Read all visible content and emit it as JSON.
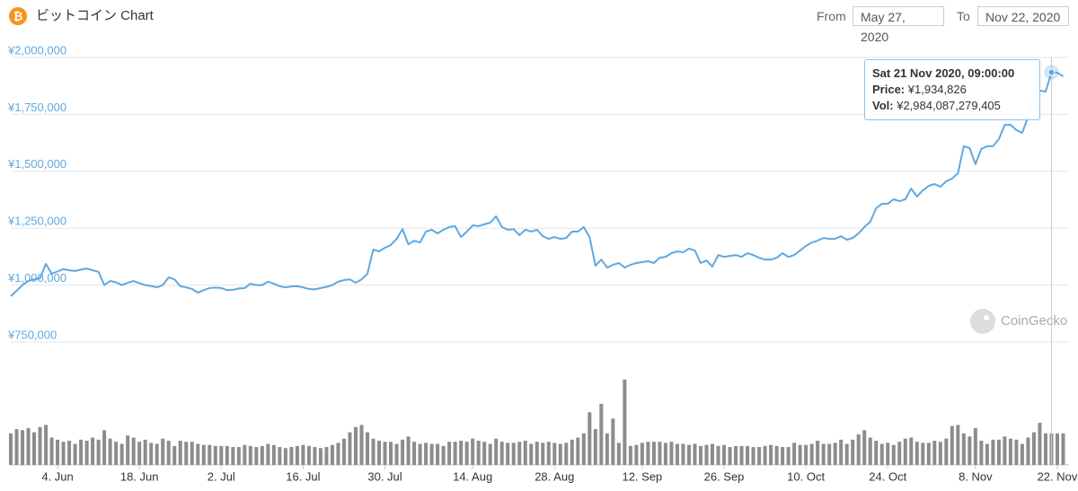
{
  "header": {
    "title": "ビットコイン Chart",
    "from_label": "From",
    "from": "May 27, 2020",
    "to_label": "To",
    "to": "Nov 22, 2020"
  },
  "watermark": "CoinGecko",
  "tooltip": {
    "date": "Sat 21 Nov 2020, 09:00:00",
    "price_label": "Price:",
    "price": "¥1,934,826",
    "volume_label": "Vol:",
    "volume": "¥2,984,087,279,405"
  },
  "chart_data": {
    "type": "line",
    "x": [
      "2020-05-27",
      "2020-05-28",
      "2020-05-29",
      "2020-05-30",
      "2020-05-31",
      "2020-06-01",
      "2020-06-02",
      "2020-06-03",
      "2020-06-04",
      "2020-06-05",
      "2020-06-06",
      "2020-06-07",
      "2020-06-08",
      "2020-06-09",
      "2020-06-10",
      "2020-06-11",
      "2020-06-12",
      "2020-06-13",
      "2020-06-14",
      "2020-06-15",
      "2020-06-16",
      "2020-06-17",
      "2020-06-18",
      "2020-06-19",
      "2020-06-20",
      "2020-06-21",
      "2020-06-22",
      "2020-06-23",
      "2020-06-24",
      "2020-06-25",
      "2020-06-26",
      "2020-06-27",
      "2020-06-28",
      "2020-06-29",
      "2020-06-30",
      "2020-07-01",
      "2020-07-02",
      "2020-07-03",
      "2020-07-04",
      "2020-07-05",
      "2020-07-06",
      "2020-07-07",
      "2020-07-08",
      "2020-07-09",
      "2020-07-10",
      "2020-07-11",
      "2020-07-12",
      "2020-07-13",
      "2020-07-14",
      "2020-07-15",
      "2020-07-16",
      "2020-07-17",
      "2020-07-18",
      "2020-07-19",
      "2020-07-20",
      "2020-07-21",
      "2020-07-22",
      "2020-07-23",
      "2020-07-24",
      "2020-07-25",
      "2020-07-26",
      "2020-07-27",
      "2020-07-28",
      "2020-07-29",
      "2020-07-30",
      "2020-07-31",
      "2020-08-01",
      "2020-08-02",
      "2020-08-03",
      "2020-08-04",
      "2020-08-05",
      "2020-08-06",
      "2020-08-07",
      "2020-08-08",
      "2020-08-09",
      "2020-08-10",
      "2020-08-11",
      "2020-08-12",
      "2020-08-13",
      "2020-08-14",
      "2020-08-15",
      "2020-08-16",
      "2020-08-17",
      "2020-08-18",
      "2020-08-19",
      "2020-08-20",
      "2020-08-21",
      "2020-08-22",
      "2020-08-23",
      "2020-08-24",
      "2020-08-25",
      "2020-08-26",
      "2020-08-27",
      "2020-08-28",
      "2020-08-29",
      "2020-08-30",
      "2020-08-31",
      "2020-09-01",
      "2020-09-02",
      "2020-09-03",
      "2020-09-04",
      "2020-09-05",
      "2020-09-06",
      "2020-09-07",
      "2020-09-08",
      "2020-09-09",
      "2020-09-10",
      "2020-09-11",
      "2020-09-12",
      "2020-09-13",
      "2020-09-14",
      "2020-09-15",
      "2020-09-16",
      "2020-09-17",
      "2020-09-18",
      "2020-09-19",
      "2020-09-20",
      "2020-09-21",
      "2020-09-22",
      "2020-09-23",
      "2020-09-24",
      "2020-09-25",
      "2020-09-26",
      "2020-09-27",
      "2020-09-28",
      "2020-09-29",
      "2020-09-30",
      "2020-10-01",
      "2020-10-02",
      "2020-10-03",
      "2020-10-04",
      "2020-10-05",
      "2020-10-06",
      "2020-10-07",
      "2020-10-08",
      "2020-10-09",
      "2020-10-10",
      "2020-10-11",
      "2020-10-12",
      "2020-10-13",
      "2020-10-14",
      "2020-10-15",
      "2020-10-16",
      "2020-10-17",
      "2020-10-18",
      "2020-10-19",
      "2020-10-20",
      "2020-10-21",
      "2020-10-22",
      "2020-10-23",
      "2020-10-24",
      "2020-10-25",
      "2020-10-26",
      "2020-10-27",
      "2020-10-28",
      "2020-10-29",
      "2020-10-30",
      "2020-10-31",
      "2020-11-01",
      "2020-11-02",
      "2020-11-03",
      "2020-11-04",
      "2020-11-05",
      "2020-11-06",
      "2020-11-07",
      "2020-11-08",
      "2020-11-09",
      "2020-11-10",
      "2020-11-11",
      "2020-11-12",
      "2020-11-13",
      "2020-11-14",
      "2020-11-15",
      "2020-11-16",
      "2020-11-17",
      "2020-11-18",
      "2020-11-19",
      "2020-11-20",
      "2020-11-21",
      "2020-11-22",
      "2020-11-23"
    ],
    "xlim": [
      "2020-05-27",
      "2020-11-24"
    ],
    "xticks": [
      {
        "value": "2020-06-04",
        "label": "4. Jun"
      },
      {
        "value": "2020-06-18",
        "label": "18. Jun"
      },
      {
        "value": "2020-07-02",
        "label": "2. Jul"
      },
      {
        "value": "2020-07-16",
        "label": "16. Jul"
      },
      {
        "value": "2020-07-30",
        "label": "30. Jul"
      },
      {
        "value": "2020-08-14",
        "label": "14. Aug"
      },
      {
        "value": "2020-08-28",
        "label": "28. Aug"
      },
      {
        "value": "2020-09-12",
        "label": "12. Sep"
      },
      {
        "value": "2020-09-26",
        "label": "26. Sep"
      },
      {
        "value": "2020-10-10",
        "label": "10. Oct"
      },
      {
        "value": "2020-10-24",
        "label": "24. Oct"
      },
      {
        "value": "2020-11-08",
        "label": "8. Nov"
      },
      {
        "value": "2020-11-22",
        "label": "22. Nov"
      }
    ],
    "ylim": [
      750000,
      2000000
    ],
    "yticks": [
      {
        "value": 750000,
        "label": "¥750,000"
      },
      {
        "value": 1000000,
        "label": "¥1,000,000"
      },
      {
        "value": 1250000,
        "label": "¥1,250,000"
      },
      {
        "value": 1500000,
        "label": "¥1,500,000"
      },
      {
        "value": 1750000,
        "label": "¥1,750,000"
      },
      {
        "value": 2000000,
        "label": "¥2,000,000"
      }
    ],
    "y2lim": [
      0,
      10900000000000.0
    ],
    "grid": true,
    "series": [
      {
        "color": "#5fa8e0",
        "values": [
          951000,
          975000,
          1000000,
          1018000,
          1025000,
          1030000,
          1093000,
          1050000,
          1060000,
          1070000,
          1065000,
          1062000,
          1068000,
          1073000,
          1065000,
          1058000,
          1000000,
          1018000,
          1012000,
          1000000,
          1010000,
          1018000,
          1008000,
          1000000,
          996000,
          990000,
          1000000,
          1034000,
          1025000,
          995000,
          990000,
          983000,
          967000,
          978000,
          987000,
          989000,
          987000,
          978000,
          979000,
          985000,
          987000,
          1006000,
          1000000,
          1000000,
          1015000,
          1006000,
          995000,
          990000,
          994000,
          995000,
          990000,
          983000,
          981000,
          987000,
          992000,
          1000000,
          1015000,
          1022000,
          1025000,
          1010000,
          1025000,
          1050000,
          1156000,
          1148000,
          1164000,
          1176000,
          1203000,
          1246000,
          1179000,
          1195000,
          1187000,
          1235000,
          1243000,
          1227000,
          1243000,
          1255000,
          1259000,
          1211000,
          1235000,
          1262000,
          1259000,
          1267000,
          1274000,
          1302000,
          1255000,
          1243000,
          1246000,
          1219000,
          1243000,
          1235000,
          1243000,
          1215000,
          1203000,
          1211000,
          1203000,
          1207000,
          1235000,
          1235000,
          1255000,
          1211000,
          1085000,
          1112000,
          1077000,
          1089000,
          1097000,
          1077000,
          1089000,
          1097000,
          1101000,
          1105000,
          1097000,
          1120000,
          1124000,
          1140000,
          1148000,
          1144000,
          1160000,
          1152000,
          1097000,
          1108000,
          1081000,
          1132000,
          1124000,
          1128000,
          1132000,
          1124000,
          1140000,
          1132000,
          1120000,
          1112000,
          1112000,
          1120000,
          1140000,
          1124000,
          1132000,
          1152000,
          1172000,
          1187000,
          1195000,
          1207000,
          1203000,
          1203000,
          1215000,
          1199000,
          1207000,
          1227000,
          1255000,
          1278000,
          1337000,
          1357000,
          1357000,
          1377000,
          1369000,
          1377000,
          1424000,
          1389000,
          1416000,
          1436000,
          1444000,
          1432000,
          1456000,
          1468000,
          1491000,
          1610000,
          1602000,
          1531000,
          1598000,
          1610000,
          1610000,
          1641000,
          1704000,
          1704000,
          1681000,
          1669000,
          1740000,
          1846000,
          1854000,
          1850000,
          1934826,
          1933000,
          1917000
        ]
      },
      {
        "type": "bar",
        "axis": "y2",
        "color": "#8c8c8c",
        "values": [
          3000000000000.0,
          3400000000000.0,
          3300000000000.0,
          3500000000000.0,
          3100000000000.0,
          3600000000000.0,
          3800000000000.0,
          2600000000000.0,
          2400000000000.0,
          2200000000000.0,
          2300000000000.0,
          2000000000000.0,
          2400000000000.0,
          2300000000000.0,
          2600000000000.0,
          2400000000000.0,
          3300000000000.0,
          2500000000000.0,
          2200000000000.0,
          2000000000000.0,
          2800000000000.0,
          2600000000000.0,
          2200000000000.0,
          2400000000000.0,
          2100000000000.0,
          2000000000000.0,
          2500000000000.0,
          2300000000000.0,
          1800000000000.0,
          2300000000000.0,
          2200000000000.0,
          2200000000000.0,
          2000000000000.0,
          1900000000000.0,
          1900000000000.0,
          1800000000000.0,
          1800000000000.0,
          1800000000000.0,
          1700000000000.0,
          1700000000000.0,
          1900000000000.0,
          1800000000000.0,
          1700000000000.0,
          1800000000000.0,
          2000000000000.0,
          1900000000000.0,
          1700000000000.0,
          1600000000000.0,
          1700000000000.0,
          1800000000000.0,
          1900000000000.0,
          1800000000000.0,
          1700000000000.0,
          1600000000000.0,
          1700000000000.0,
          1900000000000.0,
          2100000000000.0,
          2500000000000.0,
          3100000000000.0,
          3600000000000.0,
          3800000000000.0,
          3100000000000.0,
          2500000000000.0,
          2300000000000.0,
          2200000000000.0,
          2200000000000.0,
          2000000000000.0,
          2400000000000.0,
          2700000000000.0,
          2200000000000.0,
          2000000000000.0,
          2100000000000.0,
          2000000000000.0,
          2000000000000.0,
          1800000000000.0,
          2200000000000.0,
          2200000000000.0,
          2300000000000.0,
          2200000000000.0,
          2500000000000.0,
          2300000000000.0,
          2200000000000.0,
          2000000000000.0,
          2500000000000.0,
          2200000000000.0,
          2100000000000.0,
          2100000000000.0,
          2200000000000.0,
          2300000000000.0,
          2000000000000.0,
          2200000000000.0,
          2100000000000.0,
          2200000000000.0,
          2100000000000.0,
          2000000000000.0,
          2100000000000.0,
          2400000000000.0,
          2600000000000.0,
          3000000000000.0,
          5000000000000.0,
          3400000000000.0,
          5800000000000.0,
          3000000000000.0,
          4400000000000.0,
          2100000000000.0,
          8100000000000.0,
          1800000000000.0,
          1900000000000.0,
          2100000000000.0,
          2200000000000.0,
          2200000000000.0,
          2200000000000.0,
          2100000000000.0,
          2200000000000.0,
          2000000000000.0,
          2000000000000.0,
          1900000000000.0,
          2000000000000.0,
          1800000000000.0,
          1900000000000.0,
          2000000000000.0,
          1800000000000.0,
          1900000000000.0,
          1700000000000.0,
          1800000000000.0,
          1800000000000.0,
          1800000000000.0,
          1700000000000.0,
          1700000000000.0,
          1800000000000.0,
          1900000000000.0,
          1800000000000.0,
          1700000000000.0,
          1700000000000.0,
          2100000000000.0,
          1900000000000.0,
          1900000000000.0,
          2000000000000.0,
          2300000000000.0,
          2000000000000.0,
          2000000000000.0,
          2100000000000.0,
          2400000000000.0,
          2000000000000.0,
          2400000000000.0,
          2900000000000.0,
          3300000000000.0,
          2600000000000.0,
          2300000000000.0,
          2000000000000.0,
          2100000000000.0,
          1900000000000.0,
          2200000000000.0,
          2500000000000.0,
          2600000000000.0,
          2200000000000.0,
          2100000000000.0,
          2100000000000.0,
          2300000000000.0,
          2200000000000.0,
          2500000000000.0,
          3700000000000.0,
          3800000000000.0,
          3000000000000.0,
          2700000000000.0,
          3500000000000.0,
          2300000000000.0,
          2000000000000.0,
          2400000000000.0,
          2400000000000.0,
          2700000000000.0,
          2500000000000.0,
          2400000000000.0,
          2000000000000.0,
          2600000000000.0,
          3100000000000.0,
          4000000000000.0,
          3000000000000.0,
          2984087279405,
          3000000000000.0,
          3000000000000.0
        ]
      }
    ]
  }
}
